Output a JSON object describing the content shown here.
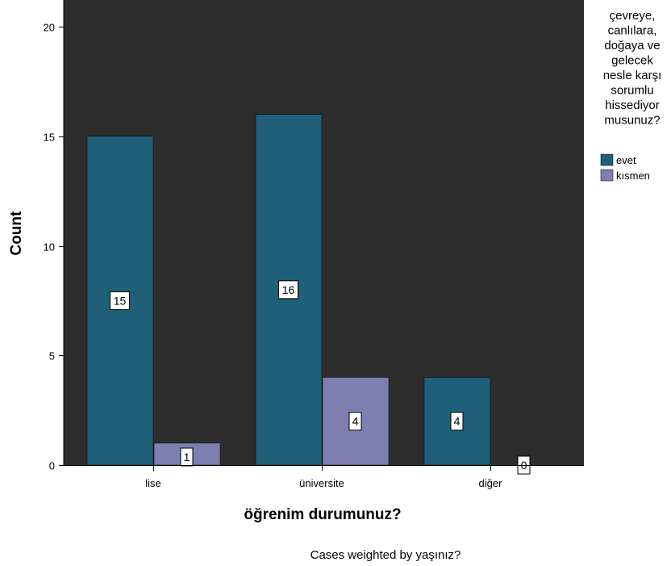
{
  "chart_data": {
    "type": "bar",
    "categories": [
      "lise",
      "üniversite",
      "diğer"
    ],
    "series": [
      {
        "name": "evet",
        "values": [
          15,
          16,
          4
        ],
        "color": "#1f5f77"
      },
      {
        "name": "kısmen",
        "values": [
          1,
          4,
          0
        ],
        "color": "#7e7eb0"
      }
    ],
    "xlabel": "öğrenim durumunuz?",
    "ylabel": "Count",
    "ylim": [
      0,
      20
    ],
    "yticks": [
      0,
      5,
      10,
      15,
      20
    ],
    "grid": false,
    "plot_background": "#2d2d2d",
    "legend": {
      "title_lines": [
        "çevreye,",
        "canlılara,",
        "doğaya ve",
        "gelecek",
        "nesle karşı",
        "sorumlu",
        "hissediyor",
        "musunuz?"
      ],
      "position": "right"
    },
    "footnote": "Cases weighted by yaşınız?"
  }
}
